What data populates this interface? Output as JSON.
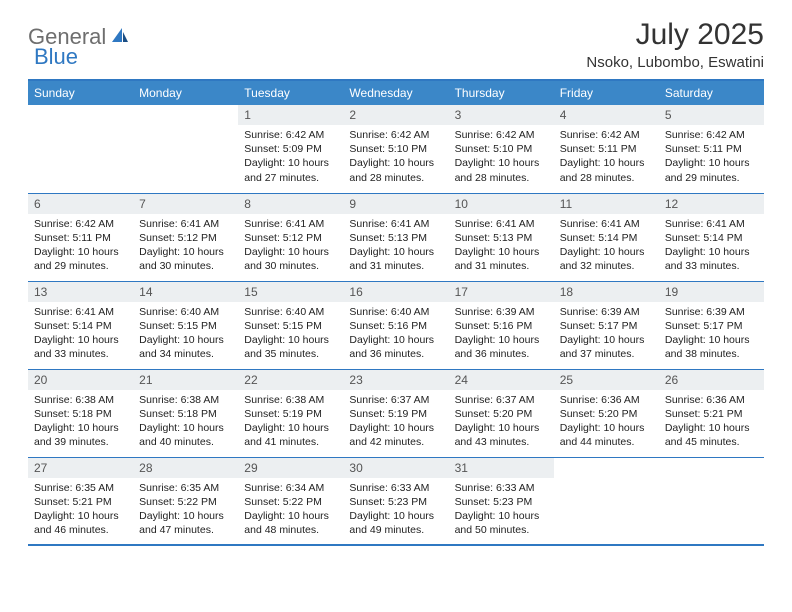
{
  "logo": {
    "part1": "General",
    "part2": "Blue"
  },
  "title": "July 2025",
  "location": "Nsoko, Lubombo, Eswatini",
  "colors": {
    "header_bg": "#3b87c8",
    "border": "#2f78c2",
    "daynum_bg": "#eceff1",
    "text": "#222222",
    "title_text": "#333333",
    "logo_gray": "#6e6e6e",
    "logo_blue": "#2f78c2",
    "background": "#ffffff"
  },
  "typography": {
    "title_fontsize": 30,
    "location_fontsize": 15,
    "weekday_fontsize": 12,
    "daynum_fontsize": 12,
    "body_fontsize": 10.5
  },
  "weekdays": [
    "Sunday",
    "Monday",
    "Tuesday",
    "Wednesday",
    "Thursday",
    "Friday",
    "Saturday"
  ],
  "weeks": [
    [
      null,
      null,
      {
        "n": "1",
        "sunrise": "6:42 AM",
        "sunset": "5:09 PM",
        "daylight": "10 hours and 27 minutes."
      },
      {
        "n": "2",
        "sunrise": "6:42 AM",
        "sunset": "5:10 PM",
        "daylight": "10 hours and 28 minutes."
      },
      {
        "n": "3",
        "sunrise": "6:42 AM",
        "sunset": "5:10 PM",
        "daylight": "10 hours and 28 minutes."
      },
      {
        "n": "4",
        "sunrise": "6:42 AM",
        "sunset": "5:11 PM",
        "daylight": "10 hours and 28 minutes."
      },
      {
        "n": "5",
        "sunrise": "6:42 AM",
        "sunset": "5:11 PM",
        "daylight": "10 hours and 29 minutes."
      }
    ],
    [
      {
        "n": "6",
        "sunrise": "6:42 AM",
        "sunset": "5:11 PM",
        "daylight": "10 hours and 29 minutes."
      },
      {
        "n": "7",
        "sunrise": "6:41 AM",
        "sunset": "5:12 PM",
        "daylight": "10 hours and 30 minutes."
      },
      {
        "n": "8",
        "sunrise": "6:41 AM",
        "sunset": "5:12 PM",
        "daylight": "10 hours and 30 minutes."
      },
      {
        "n": "9",
        "sunrise": "6:41 AM",
        "sunset": "5:13 PM",
        "daylight": "10 hours and 31 minutes."
      },
      {
        "n": "10",
        "sunrise": "6:41 AM",
        "sunset": "5:13 PM",
        "daylight": "10 hours and 31 minutes."
      },
      {
        "n": "11",
        "sunrise": "6:41 AM",
        "sunset": "5:14 PM",
        "daylight": "10 hours and 32 minutes."
      },
      {
        "n": "12",
        "sunrise": "6:41 AM",
        "sunset": "5:14 PM",
        "daylight": "10 hours and 33 minutes."
      }
    ],
    [
      {
        "n": "13",
        "sunrise": "6:41 AM",
        "sunset": "5:14 PM",
        "daylight": "10 hours and 33 minutes."
      },
      {
        "n": "14",
        "sunrise": "6:40 AM",
        "sunset": "5:15 PM",
        "daylight": "10 hours and 34 minutes."
      },
      {
        "n": "15",
        "sunrise": "6:40 AM",
        "sunset": "5:15 PM",
        "daylight": "10 hours and 35 minutes."
      },
      {
        "n": "16",
        "sunrise": "6:40 AM",
        "sunset": "5:16 PM",
        "daylight": "10 hours and 36 minutes."
      },
      {
        "n": "17",
        "sunrise": "6:39 AM",
        "sunset": "5:16 PM",
        "daylight": "10 hours and 36 minutes."
      },
      {
        "n": "18",
        "sunrise": "6:39 AM",
        "sunset": "5:17 PM",
        "daylight": "10 hours and 37 minutes."
      },
      {
        "n": "19",
        "sunrise": "6:39 AM",
        "sunset": "5:17 PM",
        "daylight": "10 hours and 38 minutes."
      }
    ],
    [
      {
        "n": "20",
        "sunrise": "6:38 AM",
        "sunset": "5:18 PM",
        "daylight": "10 hours and 39 minutes."
      },
      {
        "n": "21",
        "sunrise": "6:38 AM",
        "sunset": "5:18 PM",
        "daylight": "10 hours and 40 minutes."
      },
      {
        "n": "22",
        "sunrise": "6:38 AM",
        "sunset": "5:19 PM",
        "daylight": "10 hours and 41 minutes."
      },
      {
        "n": "23",
        "sunrise": "6:37 AM",
        "sunset": "5:19 PM",
        "daylight": "10 hours and 42 minutes."
      },
      {
        "n": "24",
        "sunrise": "6:37 AM",
        "sunset": "5:20 PM",
        "daylight": "10 hours and 43 minutes."
      },
      {
        "n": "25",
        "sunrise": "6:36 AM",
        "sunset": "5:20 PM",
        "daylight": "10 hours and 44 minutes."
      },
      {
        "n": "26",
        "sunrise": "6:36 AM",
        "sunset": "5:21 PM",
        "daylight": "10 hours and 45 minutes."
      }
    ],
    [
      {
        "n": "27",
        "sunrise": "6:35 AM",
        "sunset": "5:21 PM",
        "daylight": "10 hours and 46 minutes."
      },
      {
        "n": "28",
        "sunrise": "6:35 AM",
        "sunset": "5:22 PM",
        "daylight": "10 hours and 47 minutes."
      },
      {
        "n": "29",
        "sunrise": "6:34 AM",
        "sunset": "5:22 PM",
        "daylight": "10 hours and 48 minutes."
      },
      {
        "n": "30",
        "sunrise": "6:33 AM",
        "sunset": "5:23 PM",
        "daylight": "10 hours and 49 minutes."
      },
      {
        "n": "31",
        "sunrise": "6:33 AM",
        "sunset": "5:23 PM",
        "daylight": "10 hours and 50 minutes."
      },
      null,
      null
    ]
  ],
  "labels": {
    "sunrise": "Sunrise: ",
    "sunset": "Sunset: ",
    "daylight": "Daylight: "
  }
}
